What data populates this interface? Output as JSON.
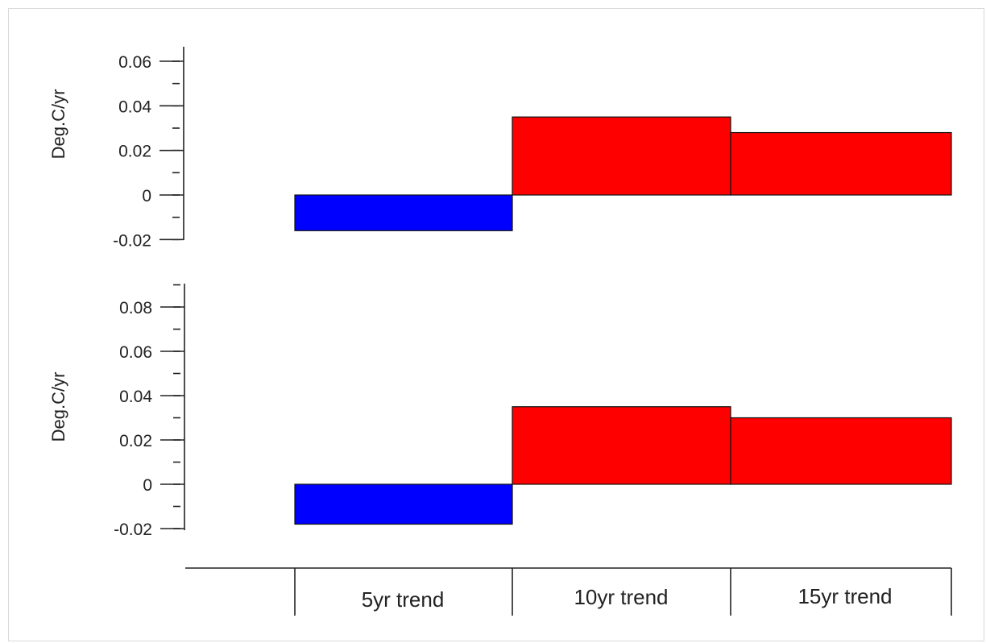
{
  "chart_data": [
    {
      "type": "bar",
      "panel": "top",
      "categories": [
        "5yr trend",
        "10yr trend",
        "15yr trend"
      ],
      "values": [
        -0.016,
        0.035,
        0.028
      ],
      "colors": [
        "#0000ff",
        "#ff0000",
        "#ff0000"
      ],
      "ylabel": "Deg.C/yr",
      "ylim": [
        -0.02,
        0.06
      ],
      "yticks": [
        -0.02,
        0,
        0.02,
        0.04,
        0.06
      ],
      "ytick_labels": [
        "-0.02",
        "0",
        "0.02",
        "0.04",
        "0.06"
      ],
      "minor_step": 0.01,
      "grid": false
    },
    {
      "type": "bar",
      "panel": "bottom",
      "categories": [
        "5yr trend",
        "10yr trend",
        "15yr trend"
      ],
      "values": [
        -0.018,
        0.035,
        0.03
      ],
      "colors": [
        "#0000ff",
        "#ff0000",
        "#ff0000"
      ],
      "ylabel": "Deg.C/yr",
      "ylim": [
        -0.02,
        0.09
      ],
      "yticks": [
        -0.02,
        0,
        0.02,
        0.04,
        0.06,
        0.08
      ],
      "ytick_labels": [
        "-0.02",
        "0",
        "0.02",
        "0.04",
        "0.06",
        "0.08"
      ],
      "minor_step": 0.01,
      "grid": false
    }
  ],
  "x_axis": {
    "category_labels": [
      "5yr trend",
      "10yr trend",
      "15yr trend"
    ]
  }
}
